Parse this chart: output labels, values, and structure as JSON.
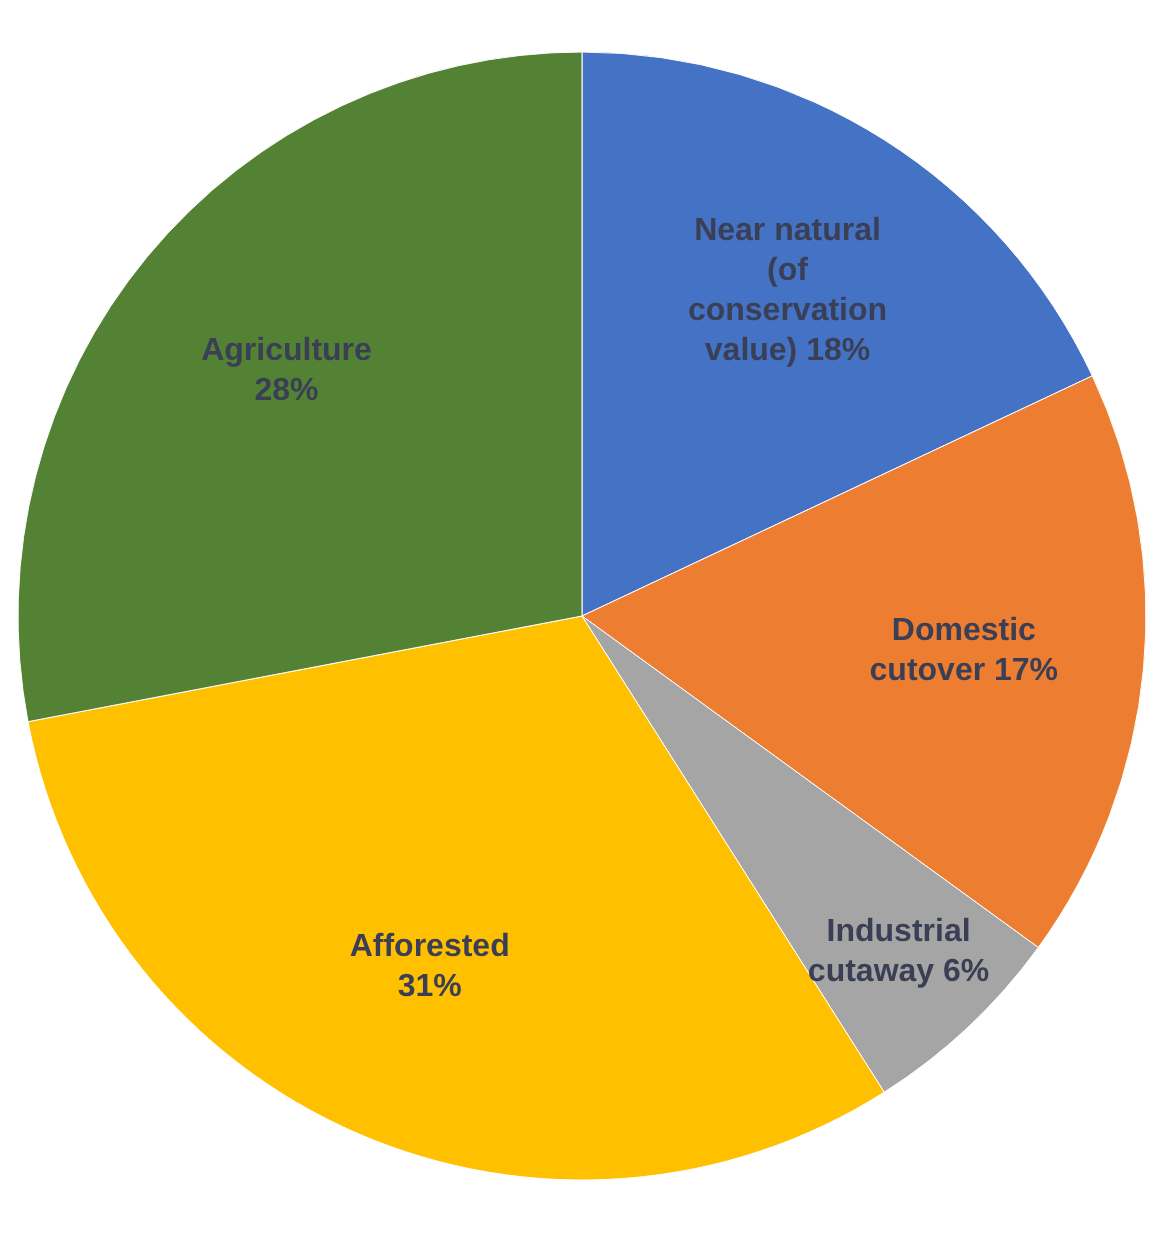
{
  "chart_data": {
    "type": "pie",
    "categories": [
      "Near natural (of conservation value)",
      "Domestic cutover",
      "Industrial cutaway",
      "Afforested",
      "Agriculture"
    ],
    "values": [
      18,
      17,
      6,
      31,
      28
    ],
    "value_labels": [
      "18%",
      "17%",
      "6%",
      "31%",
      "28%"
    ],
    "colors": [
      "#4472c4",
      "#ed7d31",
      "#a5a5a5",
      "#ffc000",
      "#548235"
    ]
  }
}
